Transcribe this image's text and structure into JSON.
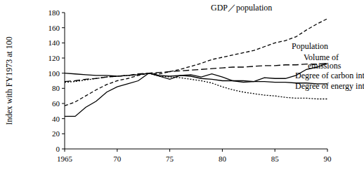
{
  "chart_data": {
    "type": "line",
    "y_label": "Index with FY1973 at 100",
    "x": [
      1965,
      1966,
      1967,
      1968,
      1969,
      1970,
      1971,
      1972,
      1973,
      1974,
      1975,
      1976,
      1977,
      1978,
      1979,
      1980,
      1981,
      1982,
      1983,
      1984,
      1985,
      1986,
      1987,
      1988,
      1989,
      1990
    ],
    "xlim": [
      1965,
      1990
    ],
    "xticks": [
      1965,
      {
        "value": 1970,
        "label": "70"
      },
      {
        "value": 1975,
        "label": "75"
      },
      {
        "value": 1980,
        "label": "80"
      },
      {
        "value": 1985,
        "label": "85"
      },
      {
        "value": 1990,
        "label": "90"
      }
    ],
    "ylim": [
      0,
      180
    ],
    "yticks": [
      0,
      20,
      40,
      60,
      80,
      100,
      120,
      140,
      160,
      180
    ],
    "grid": false,
    "series": [
      {
        "name": "GDP／population",
        "color": "#000000",
        "line_style": "dashed",
        "values": [
          57,
          62,
          70,
          78,
          85,
          90,
          93,
          97,
          100,
          99,
          102,
          105,
          109,
          113,
          118,
          121,
          124,
          127,
          130,
          135,
          140,
          143,
          148,
          157,
          165,
          172
        ]
      },
      {
        "name": "Population",
        "color": "#000000",
        "line_style": "long_dashed",
        "values": [
          89,
          90,
          92,
          93,
          95,
          96,
          97,
          99,
          100,
          101,
          102,
          103,
          104,
          105,
          106,
          107,
          108,
          108,
          109,
          110,
          110,
          111,
          111,
          112,
          112,
          113
        ]
      },
      {
        "name": "Volume of emissions",
        "color": "#000000",
        "line_style": "solid",
        "values": [
          43,
          43,
          55,
          63,
          75,
          82,
          86,
          90,
          100,
          96,
          92,
          97,
          98,
          95,
          99,
          95,
          90,
          88,
          89,
          94,
          93,
          93,
          97,
          105,
          108,
          113
        ]
      },
      {
        "name": "Degree of carbon intensity",
        "color": "#000000",
        "line_style": "solid",
        "values": [
          100,
          99,
          98,
          97,
          97,
          96,
          97,
          98,
          100,
          97,
          96,
          97,
          96,
          93,
          92,
          90,
          90,
          90,
          89,
          89,
          88,
          88,
          87,
          87,
          86,
          86
        ]
      },
      {
        "name": "Degree of energy intensity",
        "color": "#000000",
        "line_style": "dotted",
        "values": [
          88,
          89,
          91,
          93,
          95,
          96,
          97,
          98,
          100,
          96,
          95,
          94,
          92,
          90,
          87,
          82,
          78,
          75,
          73,
          71,
          70,
          68,
          67,
          67,
          66,
          66
        ]
      }
    ]
  }
}
